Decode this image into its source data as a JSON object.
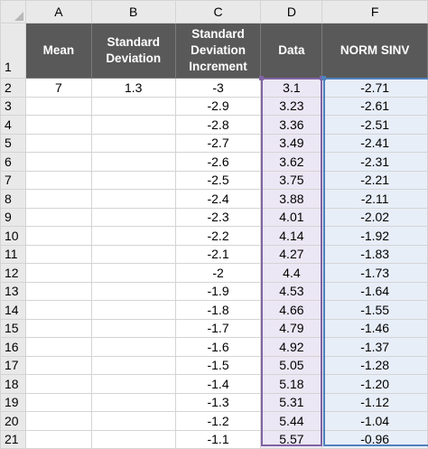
{
  "columns": [
    "A",
    "B",
    "C",
    "D",
    "F"
  ],
  "header": {
    "row_number": "1",
    "mean": "Mean",
    "std_dev": "Standard Deviation",
    "std_inc": "Standard Deviation Increment",
    "data": "Data",
    "norm": "NORM SINV"
  },
  "rows": [
    {
      "num": "2",
      "mean": "7",
      "sd": "1.3",
      "inc": "-3",
      "data": "3.1",
      "norm": "-2.71"
    },
    {
      "num": "3",
      "mean": "",
      "sd": "",
      "inc": "-2.9",
      "data": "3.23",
      "norm": "-2.61"
    },
    {
      "num": "4",
      "mean": "",
      "sd": "",
      "inc": "-2.8",
      "data": "3.36",
      "norm": "-2.51"
    },
    {
      "num": "5",
      "mean": "",
      "sd": "",
      "inc": "-2.7",
      "data": "3.49",
      "norm": "-2.41"
    },
    {
      "num": "6",
      "mean": "",
      "sd": "",
      "inc": "-2.6",
      "data": "3.62",
      "norm": "-2.31"
    },
    {
      "num": "7",
      "mean": "",
      "sd": "",
      "inc": "-2.5",
      "data": "3.75",
      "norm": "-2.21"
    },
    {
      "num": "8",
      "mean": "",
      "sd": "",
      "inc": "-2.4",
      "data": "3.88",
      "norm": "-2.11"
    },
    {
      "num": "9",
      "mean": "",
      "sd": "",
      "inc": "-2.3",
      "data": "4.01",
      "norm": "-2.02"
    },
    {
      "num": "10",
      "mean": "",
      "sd": "",
      "inc": "-2.2",
      "data": "4.14",
      "norm": "-1.92"
    },
    {
      "num": "11",
      "mean": "",
      "sd": "",
      "inc": "-2.1",
      "data": "4.27",
      "norm": "-1.83"
    },
    {
      "num": "12",
      "mean": "",
      "sd": "",
      "inc": "-2",
      "data": "4.4",
      "norm": "-1.73"
    },
    {
      "num": "13",
      "mean": "",
      "sd": "",
      "inc": "-1.9",
      "data": "4.53",
      "norm": "-1.64"
    },
    {
      "num": "14",
      "mean": "",
      "sd": "",
      "inc": "-1.8",
      "data": "4.66",
      "norm": "-1.55"
    },
    {
      "num": "15",
      "mean": "",
      "sd": "",
      "inc": "-1.7",
      "data": "4.79",
      "norm": "-1.46"
    },
    {
      "num": "16",
      "mean": "",
      "sd": "",
      "inc": "-1.6",
      "data": "4.92",
      "norm": "-1.37"
    },
    {
      "num": "17",
      "mean": "",
      "sd": "",
      "inc": "-1.5",
      "data": "5.05",
      "norm": "-1.28"
    },
    {
      "num": "18",
      "mean": "",
      "sd": "",
      "inc": "-1.4",
      "data": "5.18",
      "norm": "-1.20"
    },
    {
      "num": "19",
      "mean": "",
      "sd": "",
      "inc": "-1.3",
      "data": "5.31",
      "norm": "-1.12"
    },
    {
      "num": "20",
      "mean": "",
      "sd": "",
      "inc": "-1.2",
      "data": "5.44",
      "norm": "-1.04"
    },
    {
      "num": "21",
      "mean": "",
      "sd": "",
      "inc": "-1.1",
      "data": "5.57",
      "norm": "-0.96"
    }
  ],
  "colors": {
    "header_fill": "#595959",
    "data_fill": "#ece7f4",
    "norm_fill": "#e8eef8",
    "data_selection": "#8064a2",
    "norm_selection": "#4f81bd"
  }
}
